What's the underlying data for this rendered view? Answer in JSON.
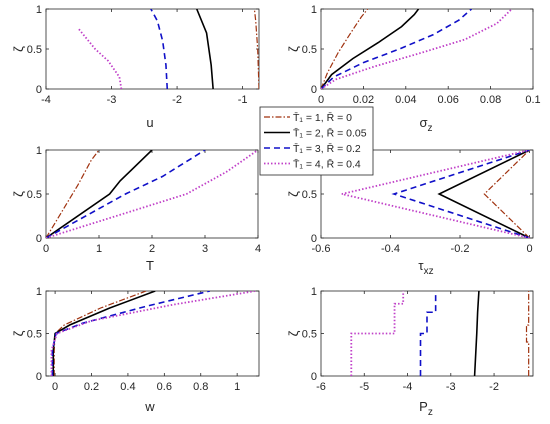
{
  "series_styles": [
    {
      "color": "#A0320F",
      "dash": "6,2,1.5,2",
      "width": 1.2
    },
    {
      "color": "#000000",
      "dash": "",
      "width": 1.6
    },
    {
      "color": "#1010C8",
      "dash": "6,4",
      "width": 1.6
    },
    {
      "color": "#C040C8",
      "dash": "1.5,2",
      "width": 1.8
    }
  ],
  "legend": {
    "placement": "center",
    "entries": [
      "T̄₁ = 1, R̄ = 0",
      "T̄₁ = 2, R̄ = 0.05",
      "T̄₁ = 3, R̄ = 0.2",
      "T̄₁ = 4, R̄ = 0.4"
    ]
  },
  "chart_data": [
    {
      "type": "line",
      "xlabel": "u",
      "ylabel": "ζ",
      "xlim": [
        -4,
        -0.75
      ],
      "ylim": [
        0,
        1
      ],
      "xticks": [
        "-4",
        "-3",
        "-2",
        "-1"
      ],
      "xtick_values": [
        -4,
        -3,
        -2,
        -1
      ],
      "yticks": [
        "0",
        "0.5",
        "1"
      ],
      "ytick_values": [
        0,
        0.5,
        1
      ],
      "series": [
        {
          "x": [
            -0.75,
            -0.77,
            -0.8,
            -0.82
          ],
          "y": [
            0,
            0.5,
            0.85,
            1
          ]
        },
        {
          "x": [
            -1.45,
            -1.48,
            -1.55,
            -1.7
          ],
          "y": [
            0,
            0.3,
            0.7,
            1
          ]
        },
        {
          "x": [
            -2.15,
            -2.17,
            -2.22,
            -2.3,
            -2.4
          ],
          "y": [
            0,
            0.3,
            0.6,
            0.85,
            1
          ]
        },
        {
          "x": [
            -2.85,
            -2.88,
            -3.05,
            -3.25,
            -3.5
          ],
          "y": [
            0,
            0.15,
            0.35,
            0.5,
            0.75
          ]
        }
      ]
    },
    {
      "type": "line",
      "xlabel": "σz",
      "ylabel": "ζ",
      "xlim": [
        0,
        0.1
      ],
      "ylim": [
        0,
        1
      ],
      "xticks": [
        "0",
        "0.02",
        "0.04",
        "0.06",
        "0.08",
        "0.1"
      ],
      "xtick_values": [
        0,
        0.02,
        0.04,
        0.06,
        0.08,
        0.1
      ],
      "yticks": [
        "0",
        "0.5",
        "1"
      ],
      "ytick_values": [
        0,
        0.5,
        1
      ],
      "series": [
        {
          "x": [
            0,
            0.003,
            0.008,
            0.014,
            0.019,
            0.022
          ],
          "y": [
            0,
            0.2,
            0.45,
            0.7,
            0.9,
            1
          ]
        },
        {
          "x": [
            0,
            0.005,
            0.015,
            0.027,
            0.038,
            0.044,
            0.046
          ],
          "y": [
            0,
            0.18,
            0.38,
            0.58,
            0.78,
            0.93,
            1
          ]
        },
        {
          "x": [
            0,
            0.006,
            0.02,
            0.037,
            0.053,
            0.065,
            0.071
          ],
          "y": [
            0,
            0.15,
            0.33,
            0.5,
            0.68,
            0.86,
            1
          ]
        },
        {
          "x": [
            0,
            0.007,
            0.025,
            0.047,
            0.068,
            0.083,
            0.09
          ],
          "y": [
            0,
            0.12,
            0.28,
            0.45,
            0.62,
            0.82,
            1
          ]
        }
      ]
    },
    {
      "type": "line",
      "xlabel": "T",
      "ylabel": "ζ",
      "xlim": [
        0,
        4
      ],
      "ylim": [
        0,
        1
      ],
      "xticks": [
        "0",
        "1",
        "2",
        "3",
        "4"
      ],
      "xtick_values": [
        0,
        1,
        2,
        3,
        4
      ],
      "yticks": [
        "0",
        "0.5",
        "1"
      ],
      "ytick_values": [
        0,
        0.5,
        1
      ],
      "series": [
        {
          "x": [
            0,
            0.3,
            0.6,
            0.85,
            1.0
          ],
          "y": [
            0,
            0.3,
            0.6,
            0.88,
            1
          ]
        },
        {
          "x": [
            0,
            1.2,
            1.4,
            2.0
          ],
          "y": [
            0,
            0.5,
            0.65,
            1
          ]
        },
        {
          "x": [
            0,
            1.5,
            2.2,
            3.0
          ],
          "y": [
            0,
            0.5,
            0.7,
            1
          ]
        },
        {
          "x": [
            0,
            2.65,
            3.4,
            4.0
          ],
          "y": [
            0,
            0.5,
            0.75,
            1
          ]
        }
      ]
    },
    {
      "type": "line",
      "xlabel": "τxz",
      "ylabel": "ζ",
      "xlim": [
        -0.6,
        0.01
      ],
      "ylim": [
        0,
        1
      ],
      "xticks": [
        "-0.6",
        "-0.4",
        "-0.2",
        "0"
      ],
      "xtick_values": [
        -0.6,
        -0.4,
        -0.2,
        0
      ],
      "yticks": [
        "0",
        "0.5",
        "1"
      ],
      "ytick_values": [
        0,
        0.5,
        1
      ],
      "series": [
        {
          "x": [
            0,
            -0.13,
            0
          ],
          "y": [
            0,
            0.5,
            1
          ]
        },
        {
          "x": [
            0,
            -0.26,
            0
          ],
          "y": [
            0,
            0.5,
            1
          ]
        },
        {
          "x": [
            0,
            -0.39,
            0
          ],
          "y": [
            0,
            0.5,
            1
          ]
        },
        {
          "x": [
            0,
            -0.54,
            0
          ],
          "y": [
            0,
            0.5,
            1
          ]
        }
      ]
    },
    {
      "type": "line",
      "xlabel": "w",
      "ylabel": "ζ",
      "xlim": [
        -0.05,
        1.12
      ],
      "ylim": [
        0,
        1
      ],
      "xticks": [
        "0",
        "0.2",
        "0.4",
        "0.6",
        "0.8",
        "1"
      ],
      "xtick_values": [
        0,
        0.2,
        0.4,
        0.6,
        0.8,
        1
      ],
      "yticks": [
        "0",
        "0.5",
        "1"
      ],
      "ytick_values": [
        0,
        0.5,
        1
      ],
      "series": [
        {
          "x": [
            -0.005,
            -0.005,
            0,
            0.05,
            0.25,
            0.5
          ],
          "y": [
            0,
            0.3,
            0.5,
            0.6,
            0.8,
            1
          ]
        },
        {
          "x": [
            -0.01,
            -0.01,
            0,
            0.08,
            0.3,
            0.55
          ],
          "y": [
            0,
            0.3,
            0.5,
            0.6,
            0.8,
            1
          ]
        },
        {
          "x": [
            -0.015,
            -0.015,
            0.005,
            0.15,
            0.5,
            0.85
          ],
          "y": [
            0,
            0.3,
            0.5,
            0.62,
            0.82,
            1
          ]
        },
        {
          "x": [
            -0.02,
            -0.02,
            0.01,
            0.2,
            0.65,
            1.1
          ],
          "y": [
            0,
            0.3,
            0.5,
            0.65,
            0.84,
            1
          ]
        }
      ]
    },
    {
      "type": "line",
      "xlabel": "Pz",
      "ylabel": "ζ",
      "xlim": [
        -6,
        -1.1
      ],
      "ylim": [
        0,
        1
      ],
      "xticks": [
        "-6",
        "-5",
        "-4",
        "-3",
        "-2"
      ],
      "xtick_values": [
        -6,
        -5,
        -4,
        -3,
        -2
      ],
      "yticks": [
        "0",
        "0.5",
        "1"
      ],
      "ytick_values": [
        0,
        0.5,
        1
      ],
      "series": [
        {
          "x": [
            -1.2,
            -1.2,
            -1.25,
            -1.25,
            -1.2,
            -1.2
          ],
          "y": [
            0,
            0.4,
            0.4,
            0.6,
            0.6,
            1
          ]
        },
        {
          "x": [
            -2.45,
            -2.4,
            -2.38,
            -2.35
          ],
          "y": [
            0,
            0.5,
            0.75,
            1
          ]
        },
        {
          "x": [
            -3.7,
            -3.7,
            -3.55,
            -3.55,
            -3.35,
            -3.35
          ],
          "y": [
            0,
            0.5,
            0.5,
            0.75,
            0.75,
            1
          ]
        },
        {
          "x": [
            -5.3,
            -5.3,
            -4.3,
            -4.3,
            -4.1,
            -4.1
          ],
          "y": [
            0,
            0.5,
            0.5,
            0.85,
            0.85,
            1
          ]
        }
      ]
    }
  ]
}
